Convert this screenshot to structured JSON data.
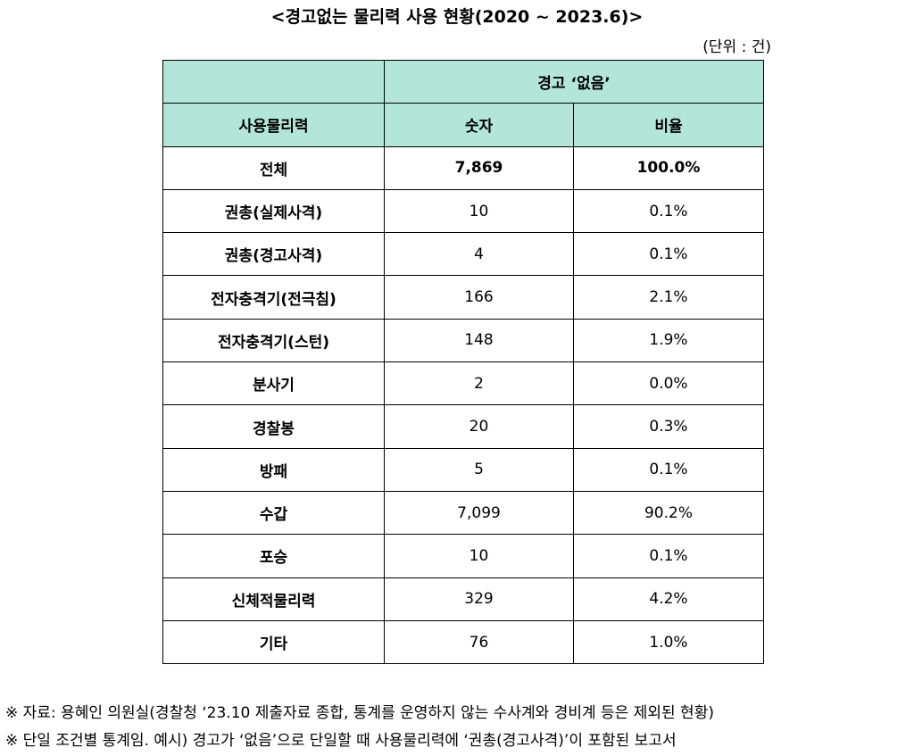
{
  "title": "<경고없는 물리력 사용 현황(2020 ~ 2023.6)>",
  "unit": "(단위 : 건)",
  "header": {
    "group": "경고 ‘없음’",
    "col0": "사용물리력",
    "col1": "숫자",
    "col2": "비율"
  },
  "rows": [
    {
      "name": "전체",
      "count": "7,869",
      "ratio": "100.0%"
    },
    {
      "name": "권총(실제사격)",
      "count": "10",
      "ratio": "0.1%"
    },
    {
      "name": "권총(경고사격)",
      "count": "4",
      "ratio": "0.1%"
    },
    {
      "name": "전자충격기(전극침)",
      "count": "166",
      "ratio": "2.1%"
    },
    {
      "name": "전자충격기(스턴)",
      "count": "148",
      "ratio": "1.9%"
    },
    {
      "name": "분사기",
      "count": "2",
      "ratio": "0.0%"
    },
    {
      "name": "경찰봉",
      "count": "20",
      "ratio": "0.3%"
    },
    {
      "name": "방패",
      "count": "5",
      "ratio": "0.1%"
    },
    {
      "name": "수갑",
      "count": "7,099",
      "ratio": "90.2%"
    },
    {
      "name": "포승",
      "count": "10",
      "ratio": "0.1%"
    },
    {
      "name": "신체적물리력",
      "count": "329",
      "ratio": "4.2%"
    },
    {
      "name": "기타",
      "count": "76",
      "ratio": "1.0%"
    }
  ],
  "notes": [
    "※ 자료: 용혜인 의원실(경찰청 ‘23.10 제출자료 종합, 통계를 운영하지 않는 수사계와 경비계 등은 제외된 현황)",
    "※ 단일 조건별 통계임. 예시)  경고가 ‘없음’으로 단일할 때 사용물리력에 ‘권총(경고사격)’이 포함된 보고서"
  ]
}
